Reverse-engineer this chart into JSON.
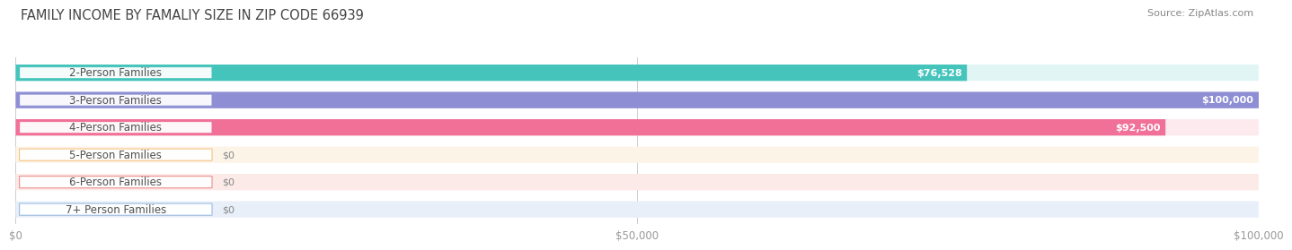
{
  "title": "FAMILY INCOME BY FAMALIY SIZE IN ZIP CODE 66939",
  "source": "Source: ZipAtlas.com",
  "categories": [
    "2-Person Families",
    "3-Person Families",
    "4-Person Families",
    "5-Person Families",
    "6-Person Families",
    "7+ Person Families"
  ],
  "values": [
    76528,
    100000,
    92500,
    0,
    0,
    0
  ],
  "bar_colors": [
    "#45C4BC",
    "#8E8ED4",
    "#F07098",
    "#F5BF80",
    "#EE8888",
    "#98B8E0"
  ],
  "bar_bg_colors": [
    "#E2F5F5",
    "#ECEDF8",
    "#FCEAEF",
    "#FDF4E8",
    "#FCEAE8",
    "#E8EFF8"
  ],
  "value_labels": [
    "$76,528",
    "$100,000",
    "$92,500",
    "$0",
    "$0",
    "$0"
  ],
  "xlim": [
    0,
    100000
  ],
  "xticks": [
    0,
    50000,
    100000
  ],
  "xticklabels": [
    "$0",
    "$50,000",
    "$100,000"
  ],
  "background_color": "#ffffff",
  "title_fontsize": 10.5,
  "source_fontsize": 8,
  "label_fontsize": 8.5,
  "value_fontsize": 8,
  "tick_fontsize": 8.5
}
